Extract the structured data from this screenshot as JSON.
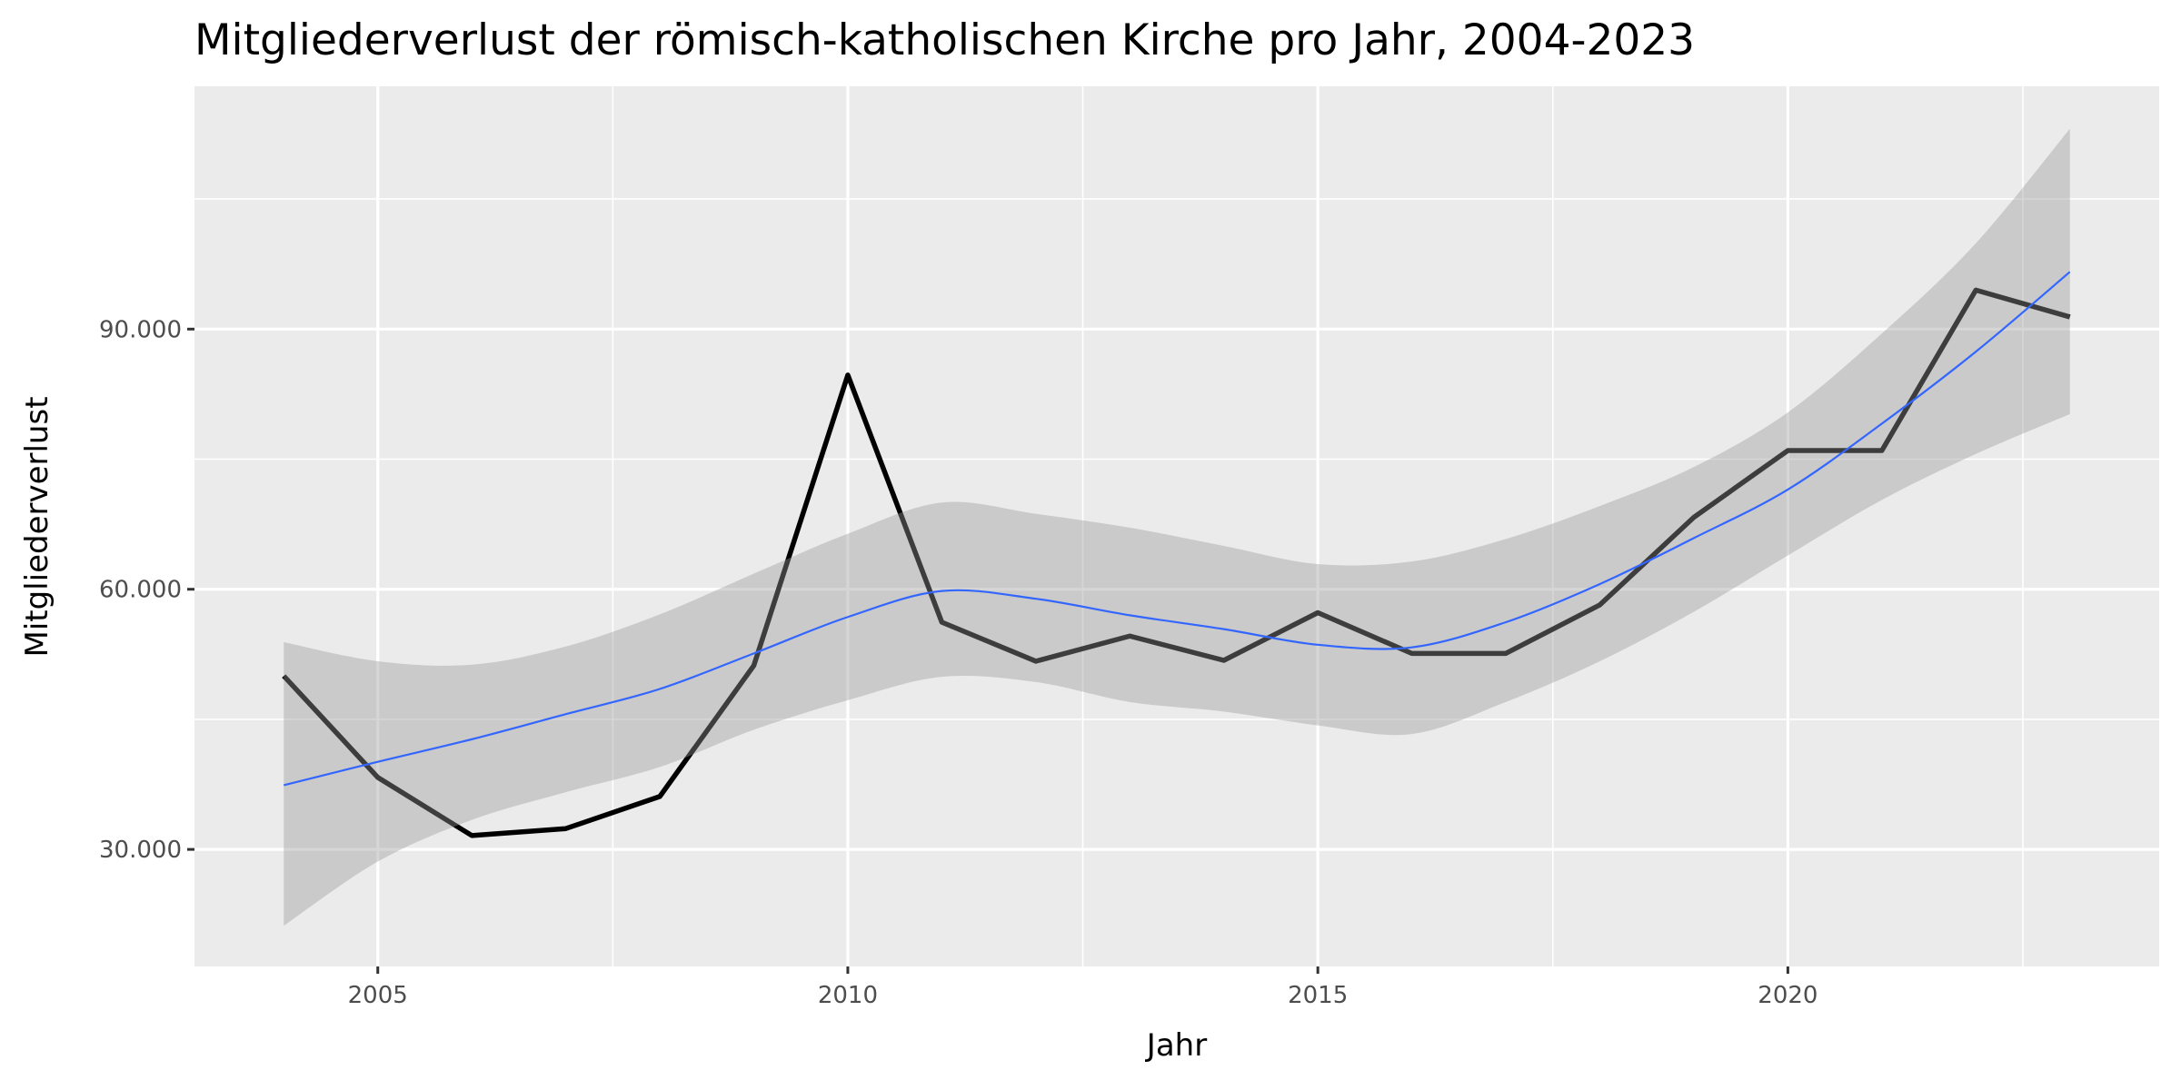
{
  "chart_data": {
    "type": "line",
    "title": "Mitgliederverlust der römisch-katholischen Kirche pro Jahr, 2004-2023",
    "xlabel": "Jahr",
    "ylabel": "Mitgliederverlust",
    "xlim": [
      2003.05,
      2023.95
    ],
    "ylim": [
      16500,
      118000
    ],
    "x_ticks": [
      2005,
      2010,
      2015,
      2020
    ],
    "x_tick_labels": [
      "2005",
      "2010",
      "2015",
      "2020"
    ],
    "y_ticks": [
      30000,
      60000,
      90000
    ],
    "y_tick_labels": [
      "30.000",
      "60.000",
      "90.000"
    ],
    "grid": true,
    "x": [
      2004,
      2005,
      2006,
      2007,
      2008,
      2009,
      2010,
      2011,
      2012,
      2013,
      2014,
      2015,
      2016,
      2017,
      2018,
      2019,
      2020,
      2021,
      2022,
      2023
    ],
    "series": [
      {
        "values": [
          50000,
          38300,
          31600,
          32400,
          36100,
          51200,
          84700,
          56200,
          51700,
          54600,
          51800,
          57300,
          52600,
          52600,
          58200,
          68300,
          76000,
          76000,
          94500,
          91400
        ]
      }
    ],
    "smooth": {
      "method": "loess",
      "fit": [
        37400,
        40100,
        42700,
        45600,
        48500,
        52600,
        56800,
        59800,
        58900,
        57000,
        55400,
        53600,
        53300,
        56200,
        60600,
        65900,
        71500,
        79100,
        87400,
        96600
      ],
      "upper": [
        53900,
        51700,
        51300,
        53400,
        57100,
        61800,
        66400,
        70000,
        68700,
        67100,
        65000,
        62900,
        63200,
        65800,
        69600,
        74100,
        80400,
        89500,
        99900,
        113100
      ],
      "lower": [
        21200,
        28600,
        33400,
        36600,
        39500,
        43800,
        47200,
        49900,
        49300,
        47000,
        45900,
        44300,
        43300,
        47000,
        51700,
        57400,
        63900,
        70300,
        75600,
        80200
      ]
    },
    "colors": {
      "panel": "#ebebeb",
      "grid": "#ffffff",
      "line": "#000000",
      "ribbon": "#999999",
      "smooth": "#3366ff"
    }
  }
}
